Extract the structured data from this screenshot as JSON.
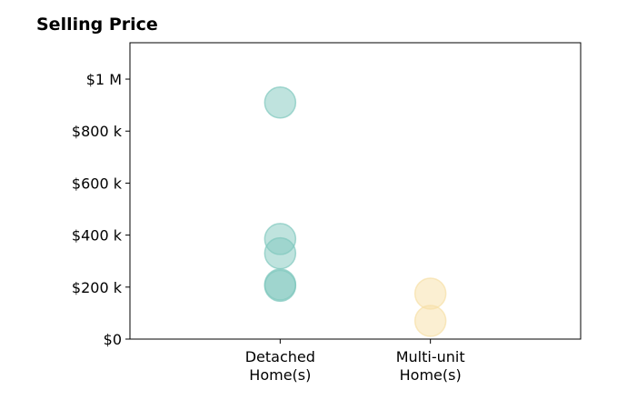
{
  "chart_data": {
    "type": "scatter",
    "title": "Selling Price",
    "xlabel": "",
    "ylabel": "",
    "categories": [
      [
        "Detached",
        "Home(s)"
      ],
      [
        "Multi-unit",
        "Home(s)"
      ]
    ],
    "ylim": [
      0,
      1140000
    ],
    "yticks": [
      0,
      200000,
      400000,
      600000,
      800000,
      1000000
    ],
    "ytick_labels": [
      "$0",
      "$200 k",
      "$400 k",
      "$600 k",
      "$800 k",
      "$1 M"
    ],
    "grid": false,
    "series": [
      {
        "category_index": 0,
        "color": "#7fc7bd",
        "values": [
          910000,
          385000,
          330000,
          210000,
          205000
        ]
      },
      {
        "category_index": 1,
        "color": "#f7dfa6",
        "values": [
          175000,
          70000
        ]
      }
    ]
  }
}
